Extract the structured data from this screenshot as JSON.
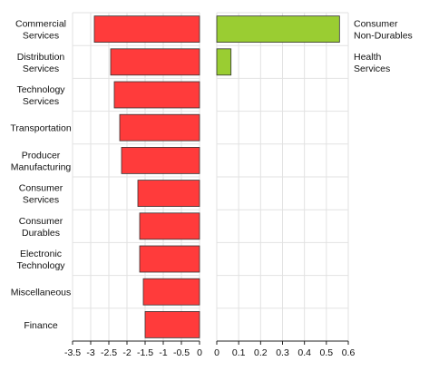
{
  "colors": {
    "negative": "#ff3b3b",
    "positive": "#9acd32",
    "grid": "#e2e2e2",
    "axis": "#222222",
    "bar_stroke": "#333333"
  },
  "chart_data": [
    {
      "type": "bar",
      "orientation": "horizontal",
      "categories": [
        [
          "Commercial",
          "Services"
        ],
        [
          "Distribution",
          "Services"
        ],
        [
          "Technology",
          "Services"
        ],
        [
          "Transportation"
        ],
        [
          "Producer",
          "Manufacturing"
        ],
        [
          "Consumer",
          "Services"
        ],
        [
          "Consumer",
          "Durables"
        ],
        [
          "Electronic",
          "Technology"
        ],
        [
          "Miscellaneous"
        ],
        [
          "Finance"
        ]
      ],
      "values": [
        -2.9,
        -2.45,
        -2.35,
        -2.2,
        -2.15,
        -1.7,
        -1.65,
        -1.65,
        -1.55,
        -1.5
      ],
      "xlim": [
        -3.5,
        0
      ],
      "xticks": [
        "-3.5",
        "-3",
        "-2.5",
        "-2",
        "-1.5",
        "-1",
        "-0.5",
        "0"
      ],
      "grid": true,
      "category_labels_side": "left"
    },
    {
      "type": "bar",
      "orientation": "horizontal",
      "categories": [
        [
          "Consumer",
          "Non-Durables"
        ],
        [
          "Health",
          "Services"
        ]
      ],
      "values": [
        0.56,
        0.065
      ],
      "xlim": [
        0,
        0.6
      ],
      "xticks": [
        "0",
        "0.1",
        "0.2",
        "0.3",
        "0.4",
        "0.5",
        "0.6"
      ],
      "grid": true,
      "category_labels_side": "right"
    }
  ]
}
